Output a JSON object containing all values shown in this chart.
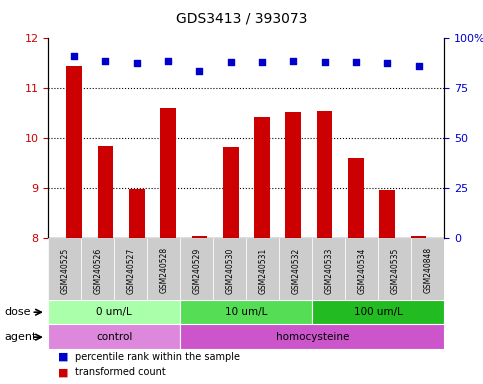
{
  "title": "GDS3413 / 393073",
  "samples": [
    "GSM240525",
    "GSM240526",
    "GSM240527",
    "GSM240528",
    "GSM240529",
    "GSM240530",
    "GSM240531",
    "GSM240532",
    "GSM240533",
    "GSM240534",
    "GSM240535",
    "GSM240848"
  ],
  "red_values": [
    11.45,
    9.85,
    8.98,
    10.6,
    8.05,
    9.82,
    10.42,
    10.52,
    10.55,
    9.6,
    8.96,
    8.05
  ],
  "blue_values": [
    11.65,
    11.55,
    11.5,
    11.55,
    11.35,
    11.52,
    11.52,
    11.55,
    11.52,
    11.52,
    11.5,
    11.45
  ],
  "ylim_left": [
    8,
    12
  ],
  "ylim_right": [
    0,
    100
  ],
  "yticks_left": [
    8,
    9,
    10,
    11,
    12
  ],
  "yticks_right": [
    0,
    25,
    50,
    75,
    100
  ],
  "ytick_labels_right": [
    "0",
    "25",
    "50",
    "75",
    "100%"
  ],
  "red_color": "#cc0000",
  "blue_color": "#0000cc",
  "grid_color": "#000000",
  "dose_groups": [
    {
      "label": "0 um/L",
      "start": 0,
      "end": 4,
      "color": "#aaffaa"
    },
    {
      "label": "10 um/L",
      "start": 4,
      "end": 8,
      "color": "#55dd55"
    },
    {
      "label": "100 um/L",
      "start": 8,
      "end": 12,
      "color": "#22bb22"
    }
  ],
  "agent_groups": [
    {
      "label": "control",
      "start": 0,
      "end": 4,
      "color": "#dd88dd"
    },
    {
      "label": "homocysteine",
      "start": 4,
      "end": 12,
      "color": "#cc55cc"
    }
  ],
  "dose_label": "dose",
  "agent_label": "agent",
  "legend_red": "transformed count",
  "legend_blue": "percentile rank within the sample",
  "xticklabel_gray": "#aaaaaa",
  "xticklabel_bg": "#cccccc"
}
